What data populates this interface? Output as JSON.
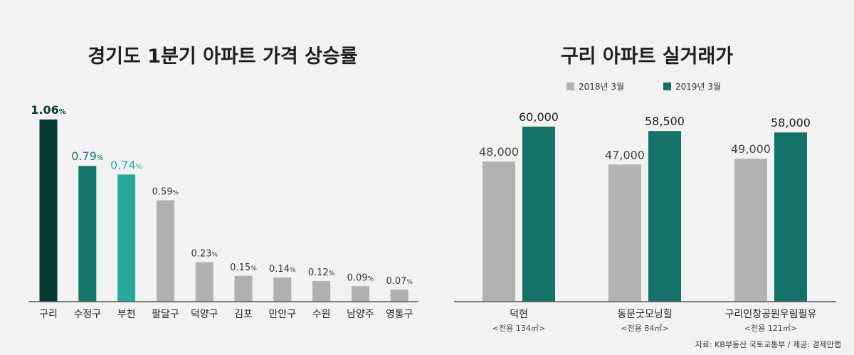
{
  "left_chart": {
    "title": "경기도 1분기 아파트 가격 상승률",
    "unit": "%",
    "colors": {
      "highlight_1": "#053a33",
      "highlight_2": "#17766b",
      "highlight_3": "#2aa79d",
      "default": "#b0b0b0"
    }
  },
  "right_chart": {
    "title": "구리 아파트 실거래가",
    "colors": {
      "2018": "#b2b2b2",
      "2019": "#157268"
    }
  },
  "source": "자료: KB부동산 국토교통부 / 제공: 경제만랩",
  "chart_data": [
    {
      "type": "bar",
      "title": "경기도 1분기 아파트 가격 상승률",
      "categories": [
        "구리",
        "수정구",
        "부천",
        "팔달구",
        "덕양구",
        "김포",
        "만안구",
        "수원",
        "남양주",
        "영통구"
      ],
      "values": [
        1.06,
        0.79,
        0.74,
        0.59,
        0.23,
        0.15,
        0.14,
        0.12,
        0.09,
        0.07
      ],
      "value_labels": [
        "1.06",
        "0.79",
        "0.74",
        "0.59",
        "0.23",
        "0.15",
        "0.14",
        "0.12",
        "0.09",
        "0.07"
      ],
      "ylim": [
        0,
        1.06
      ],
      "grid": false
    },
    {
      "type": "bar",
      "title": "구리 아파트 실거래가",
      "categories": [
        "덕현",
        "동문굿모닝힐",
        "구리인창공원우림필유"
      ],
      "category_sublabels": [
        "<전용 134㎡>",
        "<전용 84㎡>",
        "<전용 121㎡>"
      ],
      "series": [
        {
          "name": "2018년 3월",
          "values": [
            48000,
            47000,
            49000
          ],
          "labels": [
            "48,000",
            "47,000",
            "49,000"
          ]
        },
        {
          "name": "2019년 3월",
          "values": [
            60000,
            58500,
            58000
          ],
          "labels": [
            "60,000",
            "58,500",
            "58,000"
          ]
        }
      ],
      "legend": "top",
      "grid": false
    }
  ]
}
